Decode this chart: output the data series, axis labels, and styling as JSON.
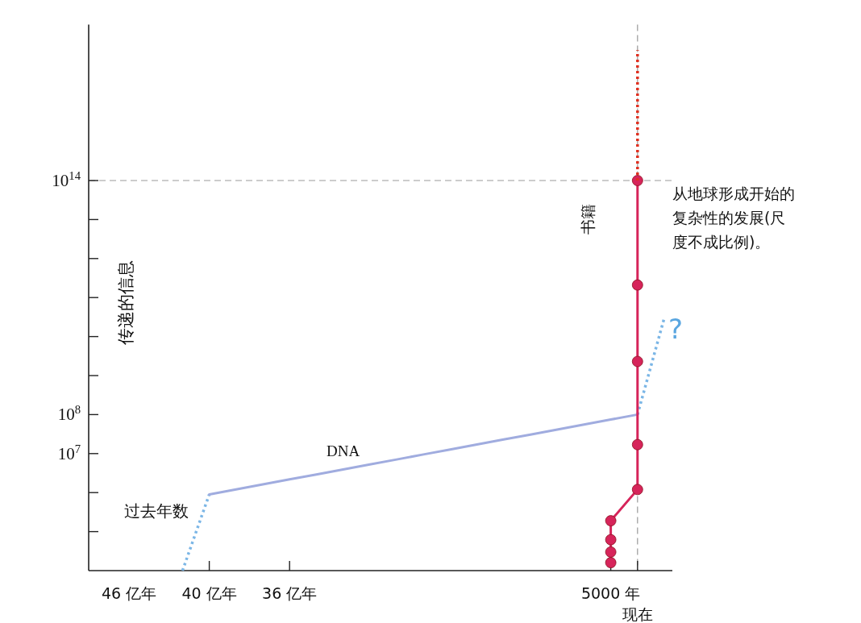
{
  "chart_data": {
    "type": "line",
    "title": "从地球形成开始的复杂性的发展(尺度不成比例)。",
    "xlabel": "过去年数",
    "ylabel": "传递的信息",
    "log": "y",
    "categories": [
      "46 亿年",
      null,
      null,
      "40 亿年",
      null,
      null,
      "36 亿年",
      null,
      null,
      null,
      null,
      null,
      null,
      null,
      null,
      null,
      null,
      null,
      "5000 年",
      "现在",
      null
    ],
    "ylim": [
      10000.0,
      1e+18
    ],
    "yticks": [
      {
        "value": 100000.0,
        "label": null
      },
      {
        "value": 1000000.0,
        "label": null
      },
      {
        "value": 10000000.0,
        "label": "10$^{7}$"
      },
      {
        "value": 100000000.0,
        "label": "10$^{8}$"
      },
      {
        "value": 1000000000.0,
        "label": null
      },
      {
        "value": 10000000000.0,
        "label": null
      },
      {
        "value": 100000000000.0,
        "label": null
      },
      {
        "value": 1000000000000.0,
        "label": null
      },
      {
        "value": 10000000000000.0,
        "label": null
      },
      {
        "value": 100000000000000.0,
        "label": "10$^{14}$"
      }
    ],
    "series": [
      {
        "color": "#7bb6e6",
        "line_style": "dotted",
        "values": [
          null,
          null,
          10000.0,
          900000.0,
          null,
          null,
          null,
          null,
          null,
          null,
          null,
          null,
          null,
          null,
          null,
          null,
          null,
          null,
          null,
          null,
          null
        ]
      },
      {
        "name": "DNA",
        "color": "#a0acdf",
        "line_style": "solid",
        "values": [
          null,
          null,
          null,
          900000.0,
          1210000.0,
          1620000.0,
          2180000.0,
          2920000.0,
          3920000.0,
          5260000.0,
          7060000.0,
          9500000.0,
          12700000.0,
          17100000.0,
          23000000.0,
          30800000.0,
          41400000.0,
          55500000.0,
          74500000.0,
          100000000.0,
          null
        ]
      },
      {
        "color": "#7bb6e6",
        "line_style": "dotted",
        "values": [
          null,
          null,
          null,
          null,
          null,
          null,
          null,
          null,
          null,
          null,
          null,
          null,
          null,
          null,
          null,
          null,
          null,
          null,
          null,
          100000000.0,
          30000000000.0
        ]
      },
      {
        "name": "书籍",
        "type": "scatter",
        "color": "#d6245a",
        "line_style": "solid",
        "marker": "circle",
        "x": [
          "5000 年",
          "5000 年",
          "5000 年",
          "5000 年",
          "现在",
          "现在",
          "现在",
          "现在",
          "现在"
        ],
        "values": [
          16000.0,
          30000.0,
          62000.0,
          190000.0,
          1200000.0,
          17000000.0,
          2300000000.0,
          210000000000.0,
          100000000000000.0
        ]
      },
      {
        "color": "#e03020",
        "line_style": "dotted",
        "x": [
          "现在",
          "现在"
        ],
        "values": [
          100000000000000.0,
          2.2e+17
        ]
      }
    ],
    "ref_lines": [
      {
        "axis": "y",
        "value": 100000000000000.0,
        "color": "#999999",
        "line_style": "dashed"
      },
      {
        "axis": "x",
        "value": "现在",
        "color": "#999999",
        "line_style": "dashed"
      }
    ],
    "annotations": [
      "?"
    ]
  }
}
